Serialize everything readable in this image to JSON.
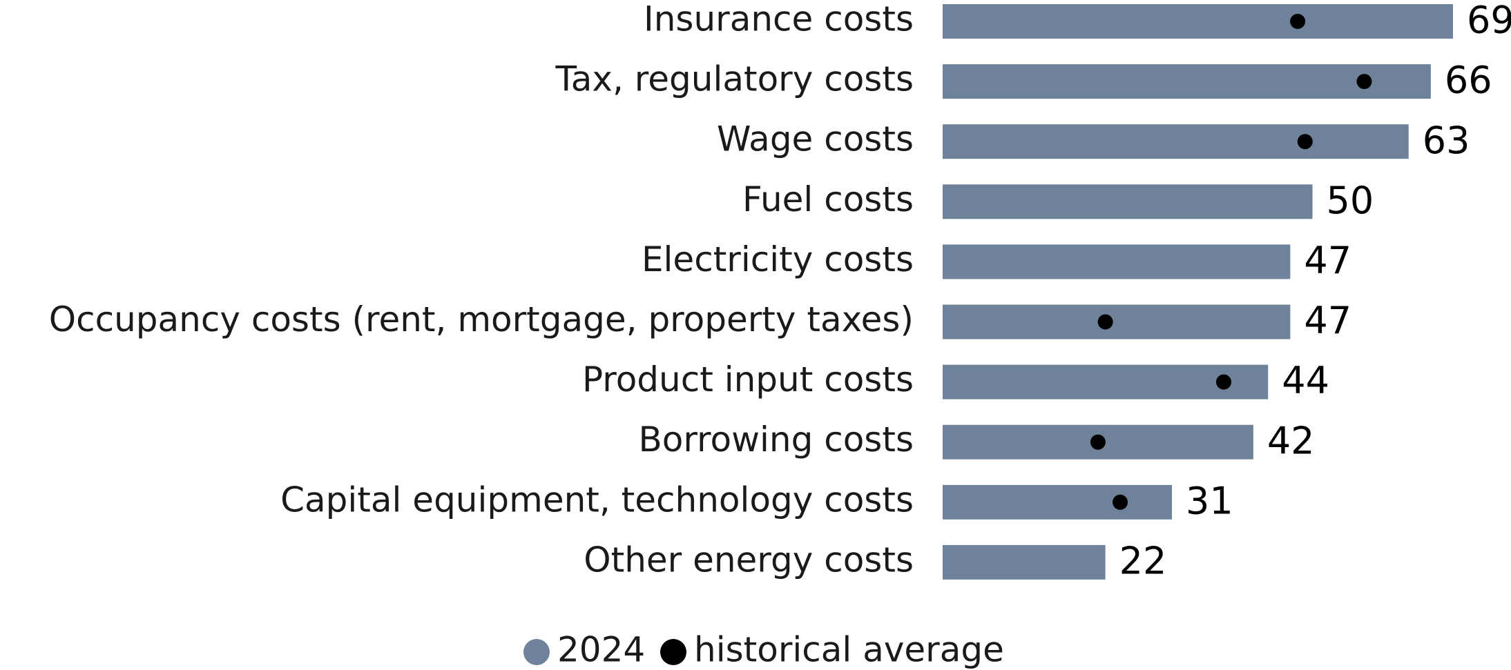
{
  "chart_data": {
    "type": "hbar_dot",
    "categories": [
      "Insurance costs",
      "Tax, regulatory costs",
      "Wage costs",
      "Fuel costs",
      "Electricity costs",
      "Occupancy costs (rent, mortgage, property taxes)",
      "Product input costs",
      "Borrowing costs",
      "Capital equipment, technology costs",
      "Other energy costs"
    ],
    "series": [
      {
        "name": "2024",
        "color": "#6e8399",
        "values": [
          69,
          66,
          63,
          50,
          47,
          47,
          44,
          42,
          31,
          22
        ]
      },
      {
        "name": "historical average",
        "color": "#000000",
        "values": [
          48,
          57,
          49,
          null,
          null,
          22,
          38,
          21,
          24,
          null
        ]
      }
    ],
    "xlim": [
      0,
      69
    ],
    "legend": "bottom"
  }
}
